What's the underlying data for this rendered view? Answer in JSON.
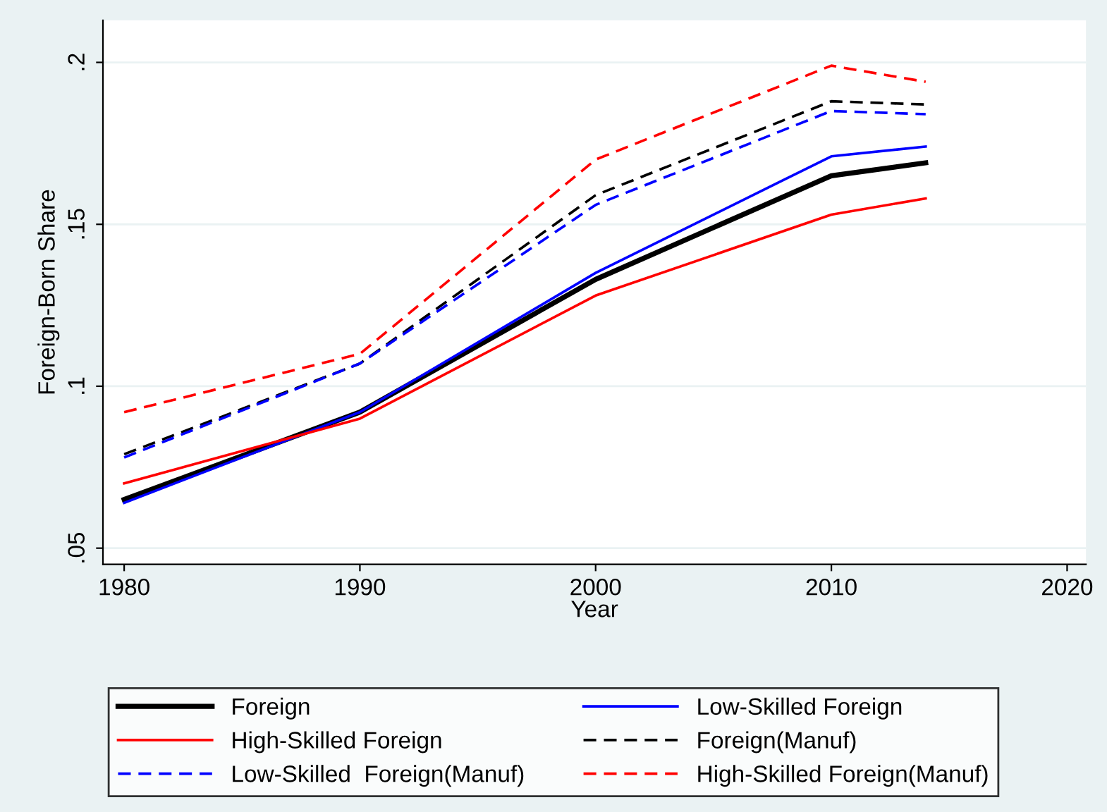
{
  "chart_data": {
    "type": "line",
    "xlabel": "Year",
    "ylabel": "Foreign-Born Share",
    "x": [
      1980,
      1990,
      2000,
      2010,
      2014
    ],
    "series": [
      {
        "name": "Foreign",
        "color": "#000000",
        "line_style": "solid",
        "values": [
          0.065,
          0.092,
          0.133,
          0.165,
          0.169
        ]
      },
      {
        "name": "Low-Skilled Foreign",
        "color": "#0000ff",
        "line_style": "solid",
        "values": [
          0.064,
          0.092,
          0.135,
          0.171,
          0.174
        ]
      },
      {
        "name": "High-Skilled Foreign",
        "color": "#ff0000",
        "line_style": "solid",
        "values": [
          0.07,
          0.09,
          0.128,
          0.153,
          0.158
        ]
      },
      {
        "name": "Foreign(Manuf)",
        "color": "#000000",
        "line_style": "dashed",
        "values": [
          0.079,
          0.107,
          0.159,
          0.188,
          0.187
        ]
      },
      {
        "name": "Low-Skilled  Foreign(Manuf)",
        "color": "#0000ff",
        "line_style": "dashed",
        "values": [
          0.078,
          0.107,
          0.156,
          0.185,
          0.184
        ]
      },
      {
        "name": "High-Skilled Foreign(Manuf)",
        "color": "#ff0000",
        "line_style": "dashed",
        "values": [
          0.092,
          0.11,
          0.17,
          0.199,
          0.194
        ]
      }
    ],
    "xlim": [
      1979.1,
      2020.8
    ],
    "xticks": [
      1980,
      1990,
      2000,
      2010,
      2020
    ],
    "ylim": [
      0.045,
      0.213
    ],
    "yticks": [
      {
        "value": 0.05,
        "label": ".05"
      },
      {
        "value": 0.1,
        "label": ".1"
      },
      {
        "value": 0.15,
        "label": ".15"
      },
      {
        "value": 0.2,
        "label": ".2"
      }
    ],
    "grid": "y",
    "legend": "bottom",
    "marker": "none"
  }
}
